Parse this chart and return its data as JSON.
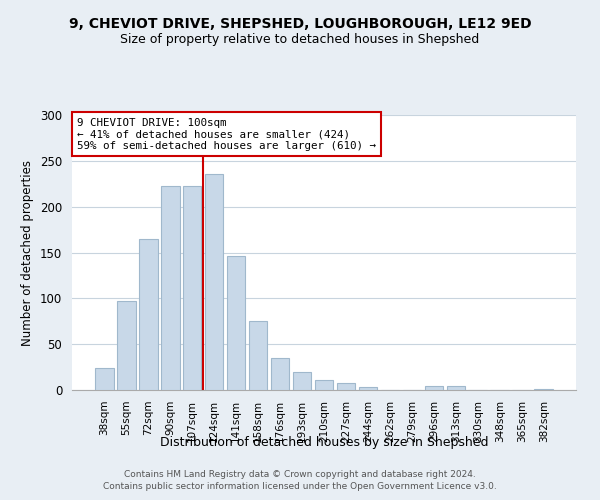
{
  "title": "9, CHEVIOT DRIVE, SHEPSHED, LOUGHBOROUGH, LE12 9ED",
  "subtitle": "Size of property relative to detached houses in Shepshed",
  "xlabel": "Distribution of detached houses by size in Shepshed",
  "ylabel": "Number of detached properties",
  "bar_labels": [
    "38sqm",
    "55sqm",
    "72sqm",
    "90sqm",
    "107sqm",
    "124sqm",
    "141sqm",
    "158sqm",
    "176sqm",
    "193sqm",
    "210sqm",
    "227sqm",
    "244sqm",
    "262sqm",
    "279sqm",
    "296sqm",
    "313sqm",
    "330sqm",
    "348sqm",
    "365sqm",
    "382sqm"
  ],
  "bar_values": [
    24,
    97,
    165,
    222,
    222,
    236,
    146,
    75,
    35,
    20,
    11,
    8,
    3,
    0,
    0,
    4,
    4,
    0,
    0,
    0,
    1
  ],
  "bar_color": "#c8d8e8",
  "bar_edge_color": "#a0b8cc",
  "vline_x": 4.5,
  "vline_color": "#cc0000",
  "annotation_title": "9 CHEVIOT DRIVE: 100sqm",
  "annotation_line1": "← 41% of detached houses are smaller (424)",
  "annotation_line2": "59% of semi-detached houses are larger (610) →",
  "annotation_box_color": "#cc0000",
  "ylim": [
    0,
    300
  ],
  "yticks": [
    0,
    50,
    100,
    150,
    200,
    250,
    300
  ],
  "footer1": "Contains HM Land Registry data © Crown copyright and database right 2024.",
  "footer2": "Contains public sector information licensed under the Open Government Licence v3.0.",
  "bg_color": "#e8eef4",
  "plot_bg_color": "#ffffff",
  "grid_color": "#c8d4de"
}
